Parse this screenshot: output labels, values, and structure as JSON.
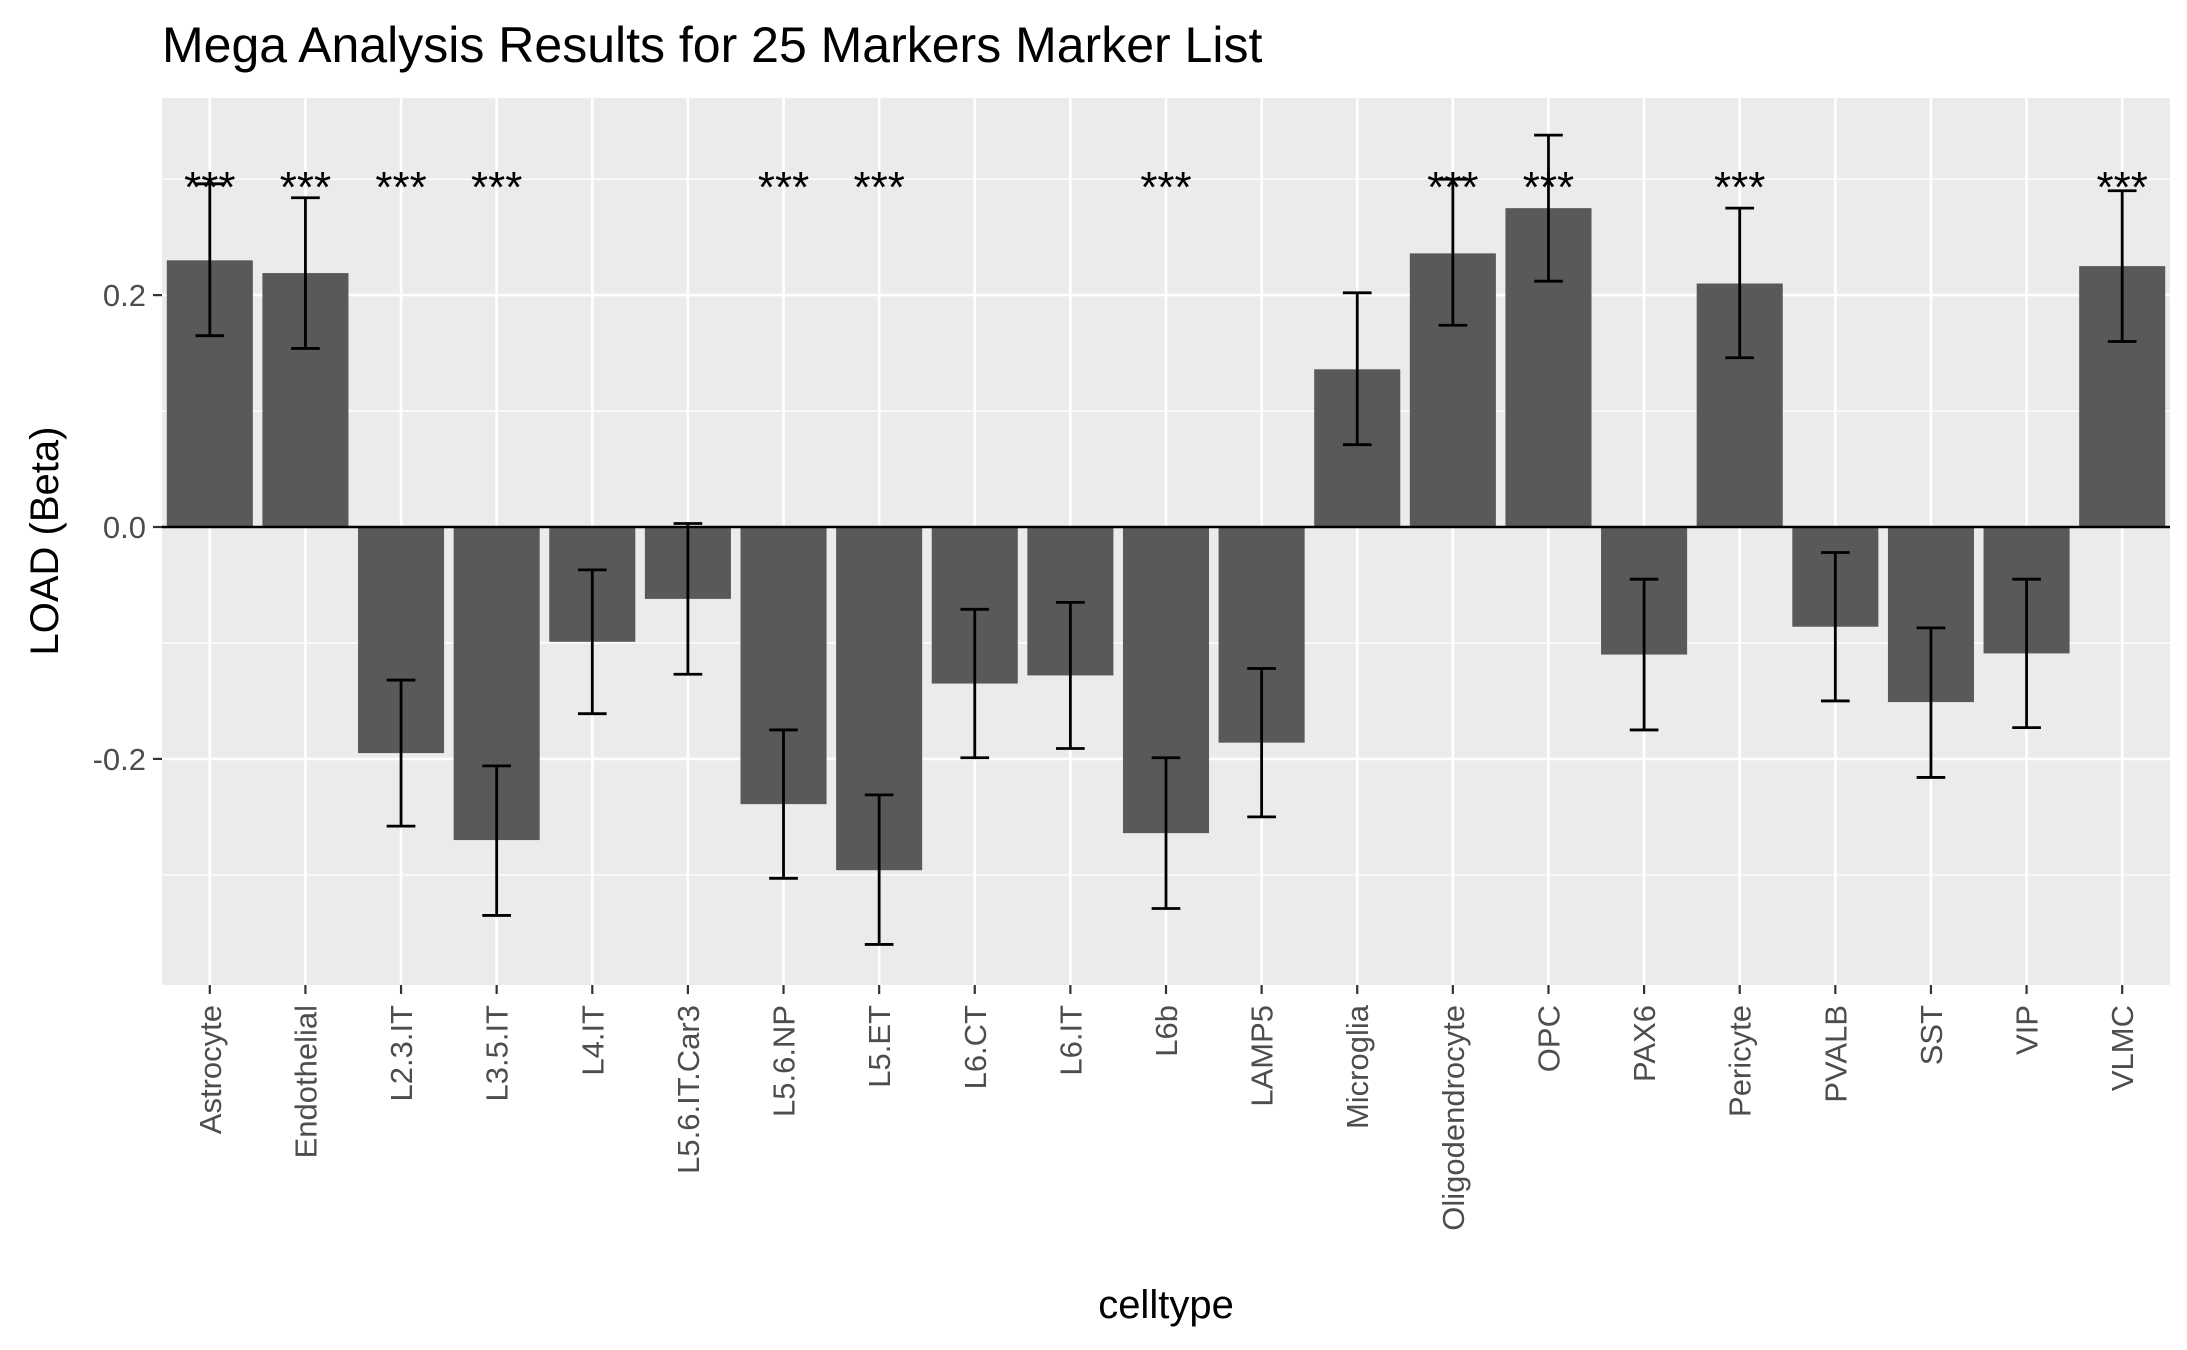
{
  "chart_data": {
    "type": "bar",
    "title": "Mega Analysis Results for 25 Markers Marker List",
    "xlabel": "celltype",
    "ylabel": "LOAD (Beta)",
    "ylim": [
      -0.395,
      0.37
    ],
    "yticks": [
      -0.2,
      0.0,
      0.2
    ],
    "ytick_labels": [
      "-0.2",
      "0.0",
      "0.2"
    ],
    "grid": true,
    "categories": [
      "Astrocyte",
      "Endothelial",
      "L2.3.IT",
      "L3.5.IT",
      "L4.IT",
      "L5.6.IT.Car3",
      "L5.6.NP",
      "L5.ET",
      "L6.CT",
      "L6.IT",
      "L6b",
      "LAMP5",
      "Microglia",
      "Oligodendrocyte",
      "OPC",
      "PAX6",
      "Pericyte",
      "PVALB",
      "SST",
      "VIP",
      "VLMC"
    ],
    "values": [
      0.23,
      0.219,
      -0.195,
      -0.27,
      -0.099,
      -0.062,
      -0.239,
      -0.296,
      -0.135,
      -0.128,
      -0.264,
      -0.186,
      0.136,
      0.236,
      0.275,
      -0.11,
      0.21,
      -0.086,
      -0.151,
      -0.109,
      0.225
    ],
    "error_low": [
      0.165,
      0.154,
      -0.258,
      -0.335,
      -0.161,
      -0.127,
      -0.303,
      -0.36,
      -0.199,
      -0.191,
      -0.329,
      -0.25,
      0.071,
      0.174,
      0.212,
      -0.175,
      0.146,
      -0.15,
      -0.216,
      -0.173,
      0.16
    ],
    "error_high": [
      0.296,
      0.284,
      -0.132,
      -0.206,
      -0.037,
      0.003,
      -0.175,
      -0.231,
      -0.071,
      -0.065,
      -0.199,
      -0.122,
      0.202,
      0.3,
      0.338,
      -0.045,
      0.275,
      -0.022,
      -0.087,
      -0.045,
      0.29
    ],
    "significance": [
      "***",
      "***",
      "***",
      "***",
      "",
      "",
      "***",
      "***",
      "",
      "",
      "***",
      "",
      "",
      "***",
      "***",
      "",
      "***",
      "",
      "",
      "",
      "***"
    ],
    "colors": {
      "panel_background": "#ebebeb",
      "grid": "#ffffff",
      "bar": "#595959",
      "error_bar": "#000000",
      "zero_line": "#000000",
      "tick_label": "#4d4d4d"
    }
  }
}
